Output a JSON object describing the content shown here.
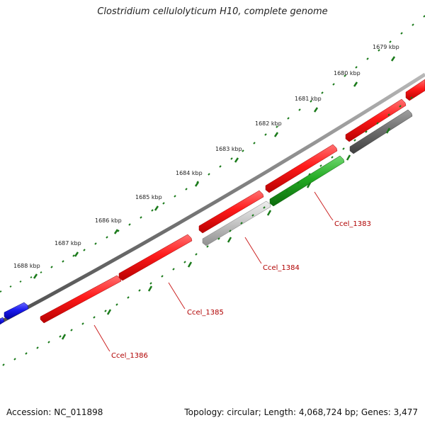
{
  "title": "Clostridium cellulolyticum H10, complete genome",
  "footer": {
    "accession": "Accession: NC_011898",
    "summary": "Topology: circular; Length: 4,068,724 bp; Genes: 3,477"
  },
  "colors": {
    "forward_gene": "#ee1111",
    "reverse_gene": "#1a1aee",
    "rna_gene": "#22aa22",
    "pseudo_gene": "#c8c8c8",
    "dark_gene": "#707070",
    "backbone": "#7a7a7a",
    "tick": "#1a7a1a",
    "label_line": "#cc2222"
  },
  "ticks": [
    "1679 kbp",
    "1680 kbp",
    "1681 kbp",
    "1682 kbp",
    "1683 kbp",
    "1684 kbp",
    "1685 kbp",
    "1686 kbp",
    "1687 kbp",
    "1688 kbp"
  ],
  "gene_labels": [
    "Ccel_1383",
    "Ccel_1384",
    "Ccel_1385",
    "Ccel_1386"
  ]
}
